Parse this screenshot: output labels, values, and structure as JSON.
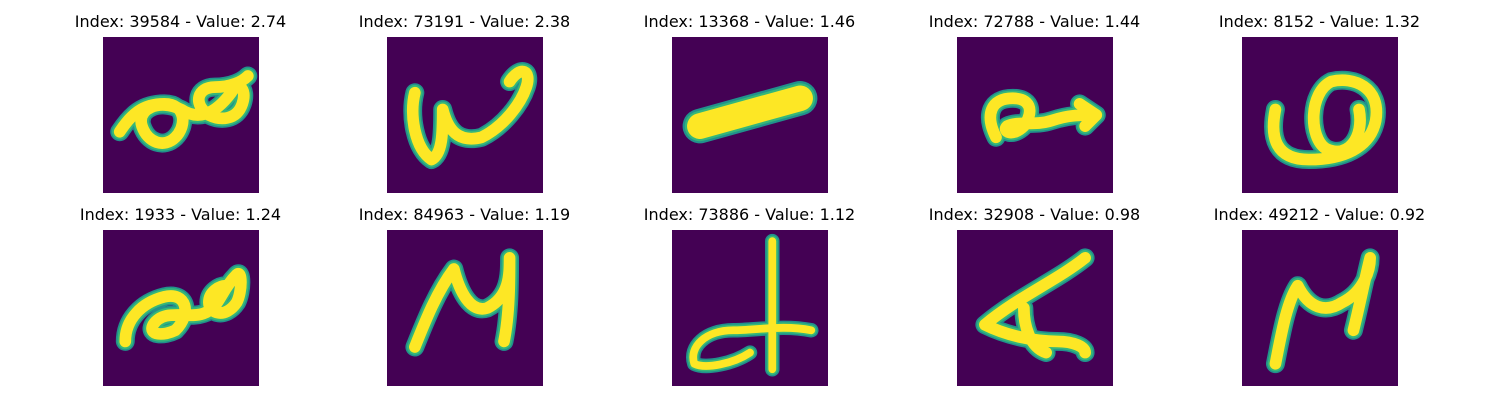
{
  "colors": {
    "background": "#440154",
    "stroke_core": "#fde725",
    "stroke_edge": "#35b779",
    "stroke_halo": "#21918c"
  },
  "panels": [
    {
      "title": "Index: 39584 - Value: 2.74"
    },
    {
      "title": "Index: 73191 - Value: 2.38"
    },
    {
      "title": "Index: 13368 - Value: 1.46"
    },
    {
      "title": "Index: 72788 - Value: 1.44"
    },
    {
      "title": "Index: 8152 - Value: 1.32"
    },
    {
      "title": "Index: 1933 - Value: 1.24"
    },
    {
      "title": "Index: 84963 - Value: 1.19"
    },
    {
      "title": "Index: 73886 - Value: 1.12"
    },
    {
      "title": "Index: 32908 - Value: 0.98"
    },
    {
      "title": "Index: 49212 - Value: 0.92"
    }
  ]
}
